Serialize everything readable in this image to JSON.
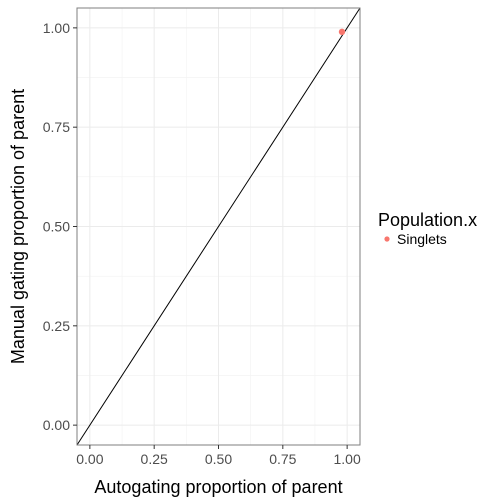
{
  "chart_data": {
    "type": "scatter",
    "title": "",
    "xlabel": "Autogating proportion of parent",
    "ylabel": "Manual gating proportion of parent",
    "xlim": [
      -0.05,
      1.05
    ],
    "ylim": [
      -0.05,
      1.05
    ],
    "x_ticks": [
      0.0,
      0.25,
      0.5,
      0.75,
      1.0
    ],
    "x_tick_labels": [
      "0.00",
      "0.25",
      "0.50",
      "0.75",
      "1.00"
    ],
    "y_ticks": [
      0.0,
      0.25,
      0.5,
      0.75,
      1.0
    ],
    "y_tick_labels": [
      "0.00",
      "0.25",
      "0.50",
      "0.75",
      "1.00"
    ],
    "grid": true,
    "reference_line": "y = x",
    "legend": {
      "title": "Population.x",
      "placement": "right",
      "entries": [
        {
          "label": "Singlets",
          "color": "#F8766D"
        }
      ]
    },
    "series": [
      {
        "name": "Singlets",
        "color": "#F8766D",
        "points": [
          {
            "x": 0.98,
            "y": 0.99
          }
        ]
      }
    ]
  }
}
